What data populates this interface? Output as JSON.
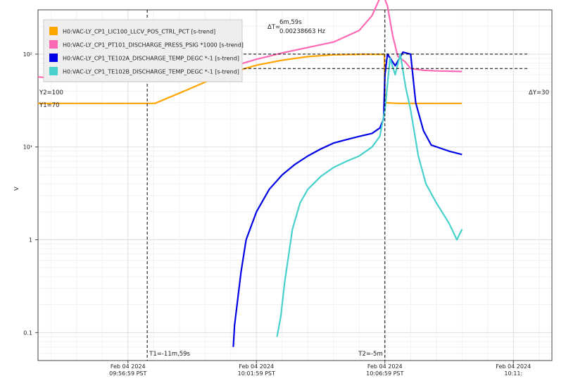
{
  "chart_data": {
    "type": "line",
    "ylabel": "V",
    "yscale": "log",
    "ylim": [
      0.05,
      300
    ],
    "y_ticks": [
      {
        "value": 100,
        "label": "10²"
      },
      {
        "value": 10,
        "label": "10¹"
      },
      {
        "value": 1,
        "label": "1"
      },
      {
        "value": 0.1,
        "label": "0.1"
      }
    ],
    "x_range_min": [
      -13.5,
      6.5
    ],
    "x_ticks": [
      {
        "value": -10,
        "line1": "Feb 04 2024",
        "line2": "09:56:59 PST"
      },
      {
        "value": -5,
        "line1": "Feb 04 2024",
        "line2": "10:01:59 PST"
      },
      {
        "value": 0,
        "line1": "Feb 04 2024",
        "line2": "10:06:59 PST"
      },
      {
        "value": 5,
        "line1": "Feb 04 2024",
        "line2": "10:11:"
      }
    ],
    "grid": true,
    "legend_position": "top-left",
    "series": [
      {
        "name": "H0:VAC-LY_CP1_LIC100_LLCV_POS_CTRL_PCT [s-trend]",
        "color": "#ffa500",
        "x": [
          -13.5,
          -9.25,
          -8.95,
          -8.0,
          -7.0,
          -6.0,
          -5.0,
          -4.0,
          -3.0,
          -2.0,
          -1.0,
          -0.02,
          0.0,
          0.5,
          1.0,
          2.0,
          3.0
        ],
        "y": [
          29.5,
          29.5,
          29.5,
          38,
          50,
          63,
          76,
          86,
          94,
          98.5,
          99.5,
          99.5,
          30,
          29.5,
          29.5,
          29.5,
          29.5
        ]
      },
      {
        "name": "H0:VAC-LY_CP1_PT101_DISCHARGE_PRESS_PSIG *1000 [s-trend]",
        "color": "#ff69b4",
        "x": [
          -13.5,
          -12,
          -10,
          -9.25,
          -8.95,
          -8,
          -7,
          -6,
          -5,
          -4,
          -3,
          -2,
          -1,
          -0.5,
          -0.1,
          0.1,
          0.3,
          0.5,
          0.8,
          1,
          1.5,
          2,
          3
        ],
        "y": [
          57,
          52,
          52,
          51,
          51,
          55,
          63,
          73,
          88,
          103,
          118,
          135,
          180,
          260,
          460,
          330,
          160,
          95,
          82,
          70,
          67,
          66,
          65
        ]
      },
      {
        "name": "H0:VAC-LY_CP1_TE102A_DISCHARGE_TEMP_DEGC *-1 [s-trend]",
        "color": "#0000e6",
        "x": [
          -5.9,
          -5.85,
          -5.6,
          -5.4,
          -5.0,
          -4.5,
          -4.0,
          -3.5,
          -3.0,
          -2.5,
          -2.0,
          -1.5,
          -1.0,
          -0.5,
          -0.2,
          -0.05,
          0.0,
          0.1,
          0.4,
          0.7,
          1.0,
          1.2,
          1.5,
          1.8,
          2.5,
          3.0
        ],
        "y": [
          0.07,
          0.12,
          0.45,
          1.0,
          2.0,
          3.5,
          5.0,
          6.5,
          8.0,
          9.5,
          11,
          12,
          13,
          14,
          16,
          20,
          60,
          100,
          75,
          105,
          100,
          30,
          15,
          10.5,
          9,
          8.3
        ]
      },
      {
        "name": "H0:VAC-LY_CP1_TE102B_DISCHARGE_TEMP_DEGC *-1 [s-trend]",
        "color": "#48d1cc",
        "x": [
          -4.2,
          -4.05,
          -3.9,
          -3.6,
          -3.3,
          -3.0,
          -2.5,
          -2.0,
          -1.5,
          -1.0,
          -0.5,
          -0.2,
          0.0,
          0.2,
          0.4,
          0.6,
          0.8,
          1.0,
          1.3,
          1.6,
          2.0,
          2.5,
          2.8,
          3.0
        ],
        "y": [
          0.09,
          0.15,
          0.35,
          1.3,
          2.5,
          3.5,
          4.8,
          6.0,
          7.0,
          8.0,
          10,
          13,
          25,
          90,
          60,
          100,
          45,
          25,
          8.0,
          4.0,
          2.5,
          1.5,
          1.0,
          1.3
        ]
      }
    ],
    "annotations": {
      "delta_t_label": "ΔT=",
      "delta_t_value": "6m,59s",
      "delta_t_freq": "0.00238663 Hz",
      "delta_y_label": "ΔY=30",
      "y2_label": "Y2=100",
      "y1_label": "Y1=70",
      "t1_label": "T1=-11m,59s",
      "t2_label": "T2=-5m",
      "cursor_t1_x": -9.25,
      "cursor_t2_x": 0.0,
      "cursor_y2": 100,
      "cursor_y1": 70
    }
  }
}
